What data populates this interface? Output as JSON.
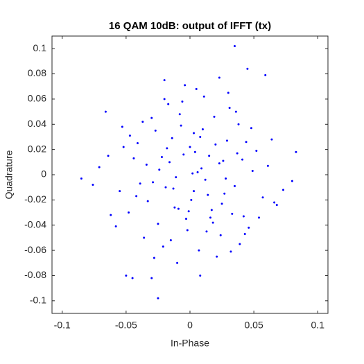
{
  "chart_data": {
    "type": "scatter",
    "title": "16 QAM 10dB: output of IFFT (tx)",
    "x_label": "In-Phase",
    "y_label": "Quadrature",
    "color": "#0000ff",
    "xlim": [
      -0.108,
      0.108
    ],
    "ylim": [
      -0.11,
      0.11
    ],
    "xticks": [
      -0.1,
      -0.05,
      0,
      0.05,
      0.1
    ],
    "yticks": [
      -0.1,
      -0.08,
      -0.06,
      -0.04,
      -0.02,
      0,
      0.02,
      0.04,
      0.06,
      0.08,
      0.1
    ],
    "grid": false,
    "x": [
      0.035,
      0.045,
      0.059,
      -0.025,
      -0.05,
      -0.045,
      0.083,
      -0.085,
      0.08,
      -0.066,
      0.008,
      -0.03,
      -0.02,
      0.023,
      0.012,
      -0.018,
      0.003,
      0.027,
      -0.034,
      0.041,
      -0.009,
      0.019,
      -0.025,
      0.006,
      -0.041,
      0.033,
      -0.013,
      0.052,
      -0.006,
      0.024,
      -0.029,
      0.015,
      0.001,
      -0.047,
      0.038,
      -0.021,
      0.009,
      -0.055,
      0.029,
      -0.003,
      0.046,
      -0.016,
      0.021,
      -0.037,
      0.004,
      0.061,
      -0.011,
      0.017,
      -0.062,
      0.035,
      -0.027,
      0.011,
      -0.002,
      0.044,
      -0.033,
      0.026,
      -0.008,
      0.057,
      -0.019,
      0.007,
      -0.044,
      0.031,
      -0.014,
      0.002,
      0.068,
      -0.052,
      0.018,
      -0.005,
      0.039,
      -0.024,
      0.014,
      -0.071,
      0.048,
      -0.01,
      0.023,
      -0.036,
      0.005,
      0.064,
      -0.058,
      0.028,
      -0.001,
      -0.03,
      0.042,
      0.01,
      -0.015,
      0.073,
      -0.048,
      0.02,
      -0.007,
      0.036,
      -0.039,
      0.013,
      0.054,
      -0.022,
      0.0,
      -0.064,
      0.032,
      -0.017,
      0.049,
      -0.004,
      0.025,
      -0.042,
      0.016,
      0.066,
      -0.028,
      0.008,
      -0.053,
      0.037,
      -0.012,
      0.03,
      -0.076,
      0.043,
      -0.02,
      0.003
    ],
    "y": [
      0.102,
      0.084,
      0.079,
      -0.098,
      -0.08,
      -0.082,
      0.018,
      -0.003,
      -0.005,
      0.05,
      -0.08,
      -0.082,
      0.075,
      0.077,
      -0.004,
      0.021,
      0.033,
      -0.015,
      0.008,
      0.012,
      -0.027,
      0.046,
      -0.039,
      0.002,
      0.025,
      -0.031,
      -0.011,
      0.019,
      0.058,
      -0.048,
      -0.006,
      0.015,
      -0.02,
      0.031,
      0.04,
      -0.057,
      0.005,
      -0.013,
      0.027,
      -0.035,
      -0.042,
      0.01,
      -0.065,
      0.042,
      0.018,
      0.007,
      -0.002,
      -0.028,
      -0.032,
      -0.009,
      0.035,
      0.062,
      -0.044,
      0.026,
      -0.021,
      0.011,
      0.048,
      -0.018,
      -0.01,
      -0.06,
      0.013,
      0.053,
      0.029,
      0.001,
      -0.024,
      0.022,
      -0.038,
      0.016,
      -0.055,
      0.004,
      -0.016,
      0.006,
      0.037,
      -0.07,
      0.009,
      -0.05,
      0.068,
      0.028,
      -0.041,
      -0.003,
      -0.029,
      0.045,
      -0.033,
      0.036,
      -0.052,
      -0.012,
      -0.03,
      0.024,
      0.039,
      0.05,
      -0.007,
      -0.045,
      -0.034,
      0.014,
      0.022,
      0.015,
      -0.061,
      0.056,
      0.003,
      0.071,
      -0.023,
      -0.017,
      -0.034,
      -0.022,
      -0.066,
      0.03,
      0.038,
      0.017,
      -0.026,
      0.065,
      -0.008,
      -0.047,
      0.06,
      -0.013
    ]
  }
}
